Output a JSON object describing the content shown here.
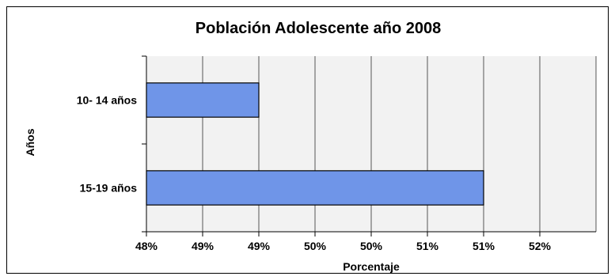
{
  "chart_data": {
    "type": "bar",
    "orientation": "horizontal",
    "title": "Población Adolescente año 2008",
    "xlabel": "Porcentaje",
    "ylabel": "Años",
    "categories": [
      "10- 14 años",
      "15-19 años"
    ],
    "values": [
      49.0,
      51.0
    ],
    "xlim": [
      48.0,
      52.0
    ],
    "x_tick_values": [
      48.0,
      48.5,
      49.0,
      49.5,
      50.0,
      50.5,
      51.0,
      51.5
    ],
    "x_tick_labels": [
      "48%",
      "49%",
      "49%",
      "50%",
      "50%",
      "51%",
      "51%",
      "52%"
    ],
    "grid": true,
    "legend": "none",
    "colors": {
      "bar_fill": "#6f95e8",
      "bar_stroke": "#000000",
      "plot_bg": "#f2f2f2",
      "grid": "#555555"
    }
  }
}
